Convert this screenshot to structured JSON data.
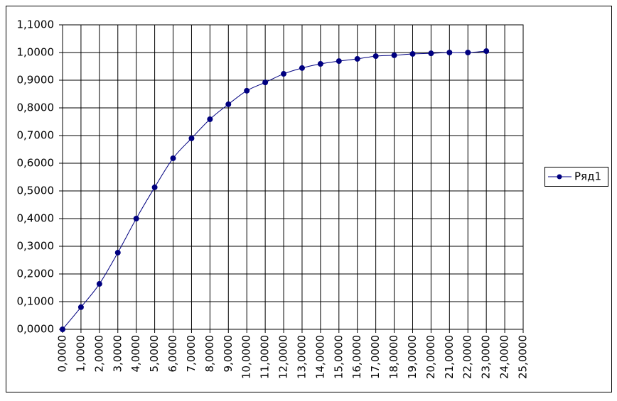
{
  "chart_data": {
    "type": "line",
    "x": [
      0,
      1,
      2,
      3,
      4,
      5,
      6,
      7,
      8,
      9,
      10,
      11,
      12,
      13,
      14,
      15,
      16,
      17,
      18,
      19,
      20,
      21,
      22,
      23
    ],
    "series": [
      {
        "name": "Ряд1",
        "color": "#000080",
        "values": [
          0,
          0.08,
          0.164,
          0.277,
          0.4,
          0.513,
          0.618,
          0.69,
          0.759,
          0.813,
          0.862,
          0.892,
          0.923,
          0.944,
          0.959,
          0.969,
          0.977,
          0.987,
          0.99,
          0.995,
          0.997,
          1.0,
          1.0,
          1.005
        ]
      }
    ],
    "xlim": [
      0,
      25
    ],
    "xticks": [
      {
        "value": 0,
        "label": "0,0000"
      },
      {
        "value": 1,
        "label": "1,0000"
      },
      {
        "value": 2,
        "label": "2,0000"
      },
      {
        "value": 3,
        "label": "3,0000"
      },
      {
        "value": 4,
        "label": "4,0000"
      },
      {
        "value": 5,
        "label": "5,0000"
      },
      {
        "value": 6,
        "label": "6,0000"
      },
      {
        "value": 7,
        "label": "7,0000"
      },
      {
        "value": 8,
        "label": "8,0000"
      },
      {
        "value": 9,
        "label": "9,0000"
      },
      {
        "value": 10,
        "label": "10,0000"
      },
      {
        "value": 11,
        "label": "11,0000"
      },
      {
        "value": 12,
        "label": "12,0000"
      },
      {
        "value": 13,
        "label": "13,0000"
      },
      {
        "value": 14,
        "label": "14,0000"
      },
      {
        "value": 15,
        "label": "15,0000"
      },
      {
        "value": 16,
        "label": "16,0000"
      },
      {
        "value": 17,
        "label": "17,0000"
      },
      {
        "value": 18,
        "label": "18,0000"
      },
      {
        "value": 19,
        "label": "19,0000"
      },
      {
        "value": 20,
        "label": "20,0000"
      },
      {
        "value": 21,
        "label": "21,0000"
      },
      {
        "value": 22,
        "label": "22,0000"
      },
      {
        "value": 23,
        "label": "23,0000"
      },
      {
        "value": 24,
        "label": "24,0000"
      },
      {
        "value": 25,
        "label": "25,0000"
      }
    ],
    "ylim": [
      0,
      1.1
    ],
    "yticks": [
      {
        "value": 0,
        "label": "0,0000"
      },
      {
        "value": 0.1,
        "label": "0,1000"
      },
      {
        "value": 0.2,
        "label": "0,2000"
      },
      {
        "value": 0.3,
        "label": "0,3000"
      },
      {
        "value": 0.4,
        "label": "0,4000"
      },
      {
        "value": 0.5,
        "label": "0,5000"
      },
      {
        "value": 0.6,
        "label": "0,6000"
      },
      {
        "value": 0.7,
        "label": "0,7000"
      },
      {
        "value": 0.8,
        "label": "0,8000"
      },
      {
        "value": 0.9,
        "label": "0,9000"
      },
      {
        "value": 1.0,
        "label": "1,0000"
      },
      {
        "value": 1.1,
        "label": "1,1000"
      }
    ],
    "grid": true,
    "legend": "right"
  }
}
